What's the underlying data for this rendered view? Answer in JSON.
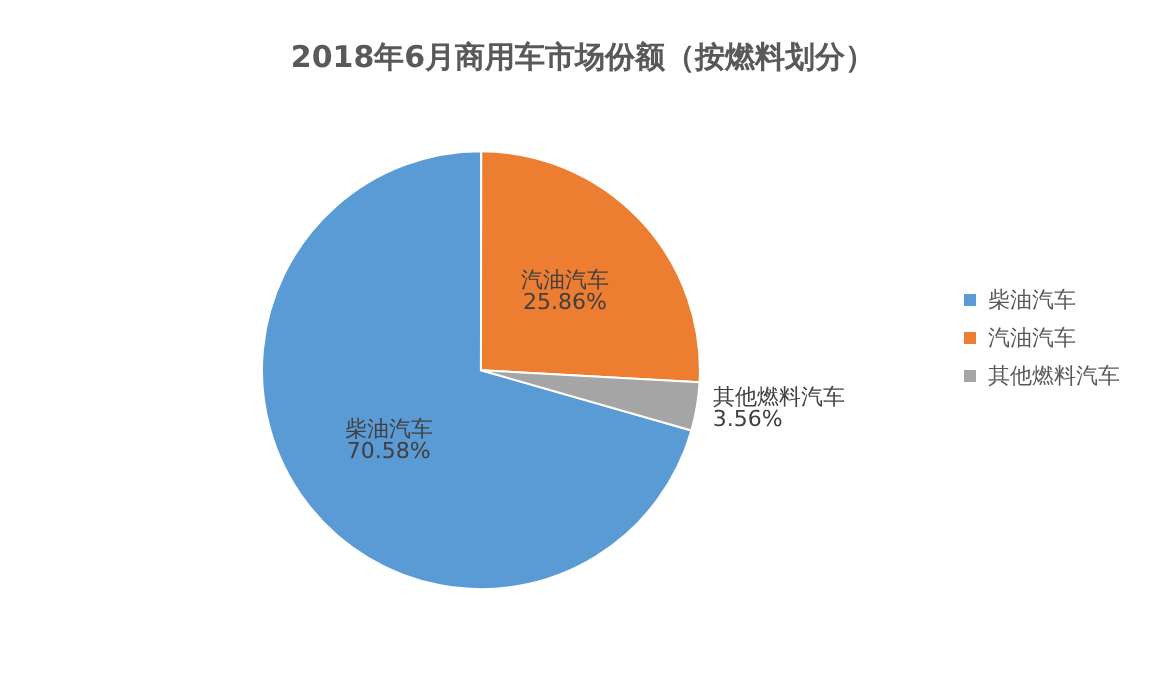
{
  "chart_data": {
    "type": "pie",
    "title": "2018年6月商用车市场份额（按燃料划分）",
    "categories": [
      "柴油汽车",
      "汽油汽车",
      "其他燃料汽车"
    ],
    "values": [
      70.58,
      25.86,
      3.56
    ],
    "colors": [
      "#5b9bd5",
      "#ed7d31",
      "#a5a5a5"
    ],
    "value_labels": [
      "70.58%",
      "25.86%",
      "3.56%"
    ],
    "legend": "right"
  }
}
